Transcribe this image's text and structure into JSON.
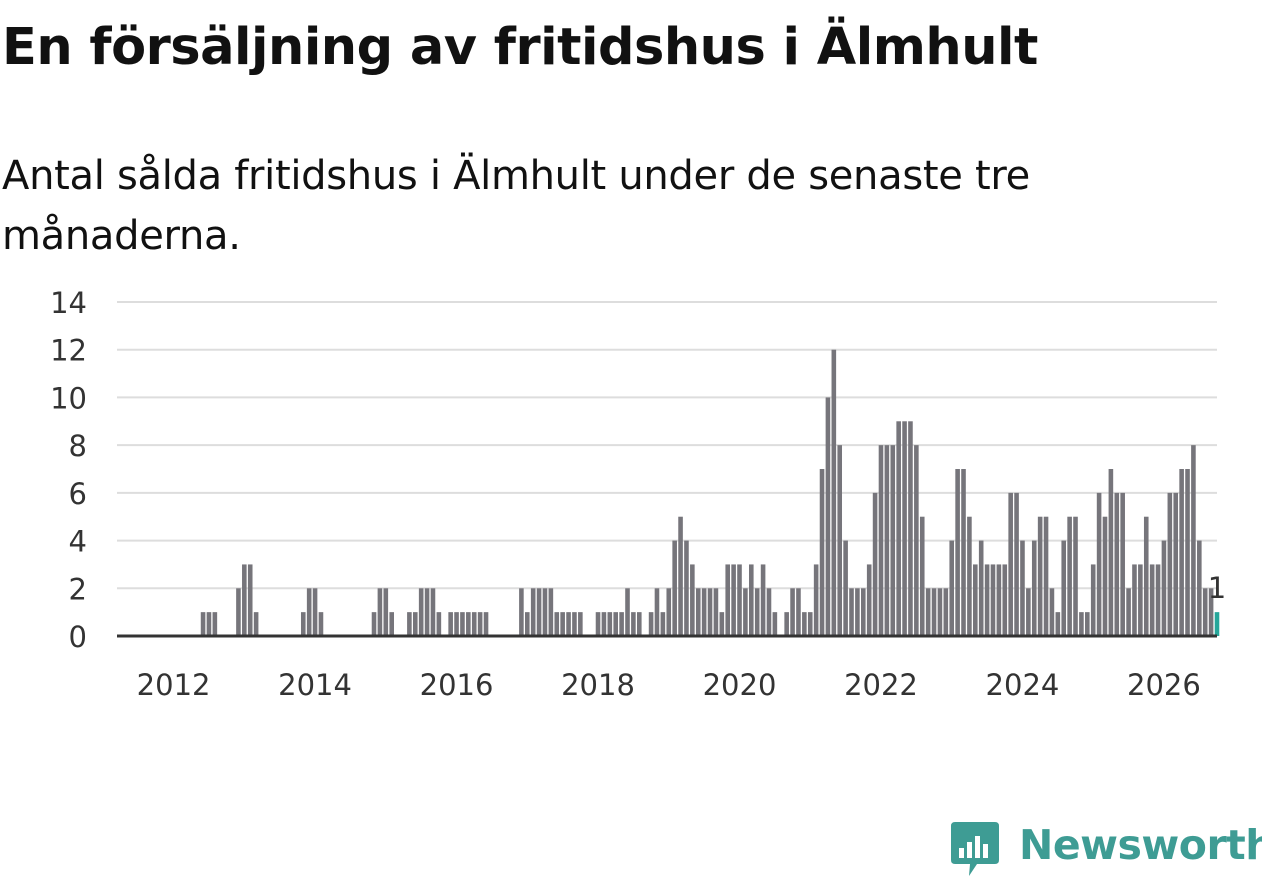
{
  "header": {
    "title": "En försäljning av fritidshus i Älmhult",
    "subtitle": "Antal sålda fritidshus i Älmhult under de senaste tre månaderna."
  },
  "brand": {
    "name": "Newsworthy",
    "icon": "newsworthy-logo-icon",
    "color": "#3e9c94"
  },
  "colors": {
    "bar": "#76757b",
    "highlight": "#26a69a",
    "grid": "#dddddd",
    "axis": "#333333"
  },
  "chart_data": {
    "type": "bar",
    "title": "En försäljning av fritidshus i Älmhult",
    "subtitle": "Antal sålda fritidshus i Älmhult under de senaste tre månaderna.",
    "xlabel": "",
    "ylabel": "",
    "ylim": [
      0,
      14
    ],
    "yticks": [
      0,
      2,
      4,
      6,
      8,
      10,
      12,
      14
    ],
    "xticks": [
      2012,
      2014,
      2016,
      2018,
      2020,
      2022,
      2024,
      2026
    ],
    "xlim": [
      2011.2,
      2026.75
    ],
    "start": [
      2011,
      6
    ],
    "grid": true,
    "highlight_label": "1",
    "values": [
      0,
      0,
      0,
      0,
      0,
      0,
      0,
      0,
      0,
      0,
      0,
      0,
      1,
      1,
      1,
      0,
      0,
      0,
      2,
      3,
      3,
      1,
      0,
      0,
      0,
      0,
      0,
      0,
      0,
      1,
      2,
      2,
      1,
      0,
      0,
      0,
      0,
      0,
      0,
      0,
      0,
      1,
      2,
      2,
      1,
      0,
      0,
      1,
      1,
      2,
      2,
      2,
      1,
      0,
      1,
      1,
      1,
      1,
      1,
      1,
      1,
      0,
      0,
      0,
      0,
      0,
      2,
      1,
      2,
      2,
      2,
      2,
      1,
      1,
      1,
      1,
      1,
      0,
      0,
      1,
      1,
      1,
      1,
      1,
      2,
      1,
      1,
      0,
      1,
      2,
      1,
      2,
      4,
      5,
      4,
      3,
      2,
      2,
      2,
      2,
      1,
      3,
      3,
      3,
      2,
      3,
      2,
      3,
      2,
      1,
      0,
      1,
      2,
      2,
      1,
      1,
      3,
      7,
      10,
      12,
      8,
      4,
      2,
      2,
      2,
      3,
      6,
      8,
      8,
      8,
      9,
      9,
      9,
      8,
      5,
      2,
      2,
      2,
      2,
      4,
      7,
      7,
      5,
      3,
      4,
      3,
      3,
      3,
      3,
      6,
      6,
      4,
      2,
      4,
      5,
      5,
      2,
      1,
      4,
      5,
      5,
      1,
      1,
      3,
      6,
      5,
      7,
      6,
      6,
      2,
      3,
      3,
      5,
      3,
      3,
      4,
      6,
      6,
      7,
      7,
      8,
      4,
      2,
      2,
      1
    ]
  }
}
